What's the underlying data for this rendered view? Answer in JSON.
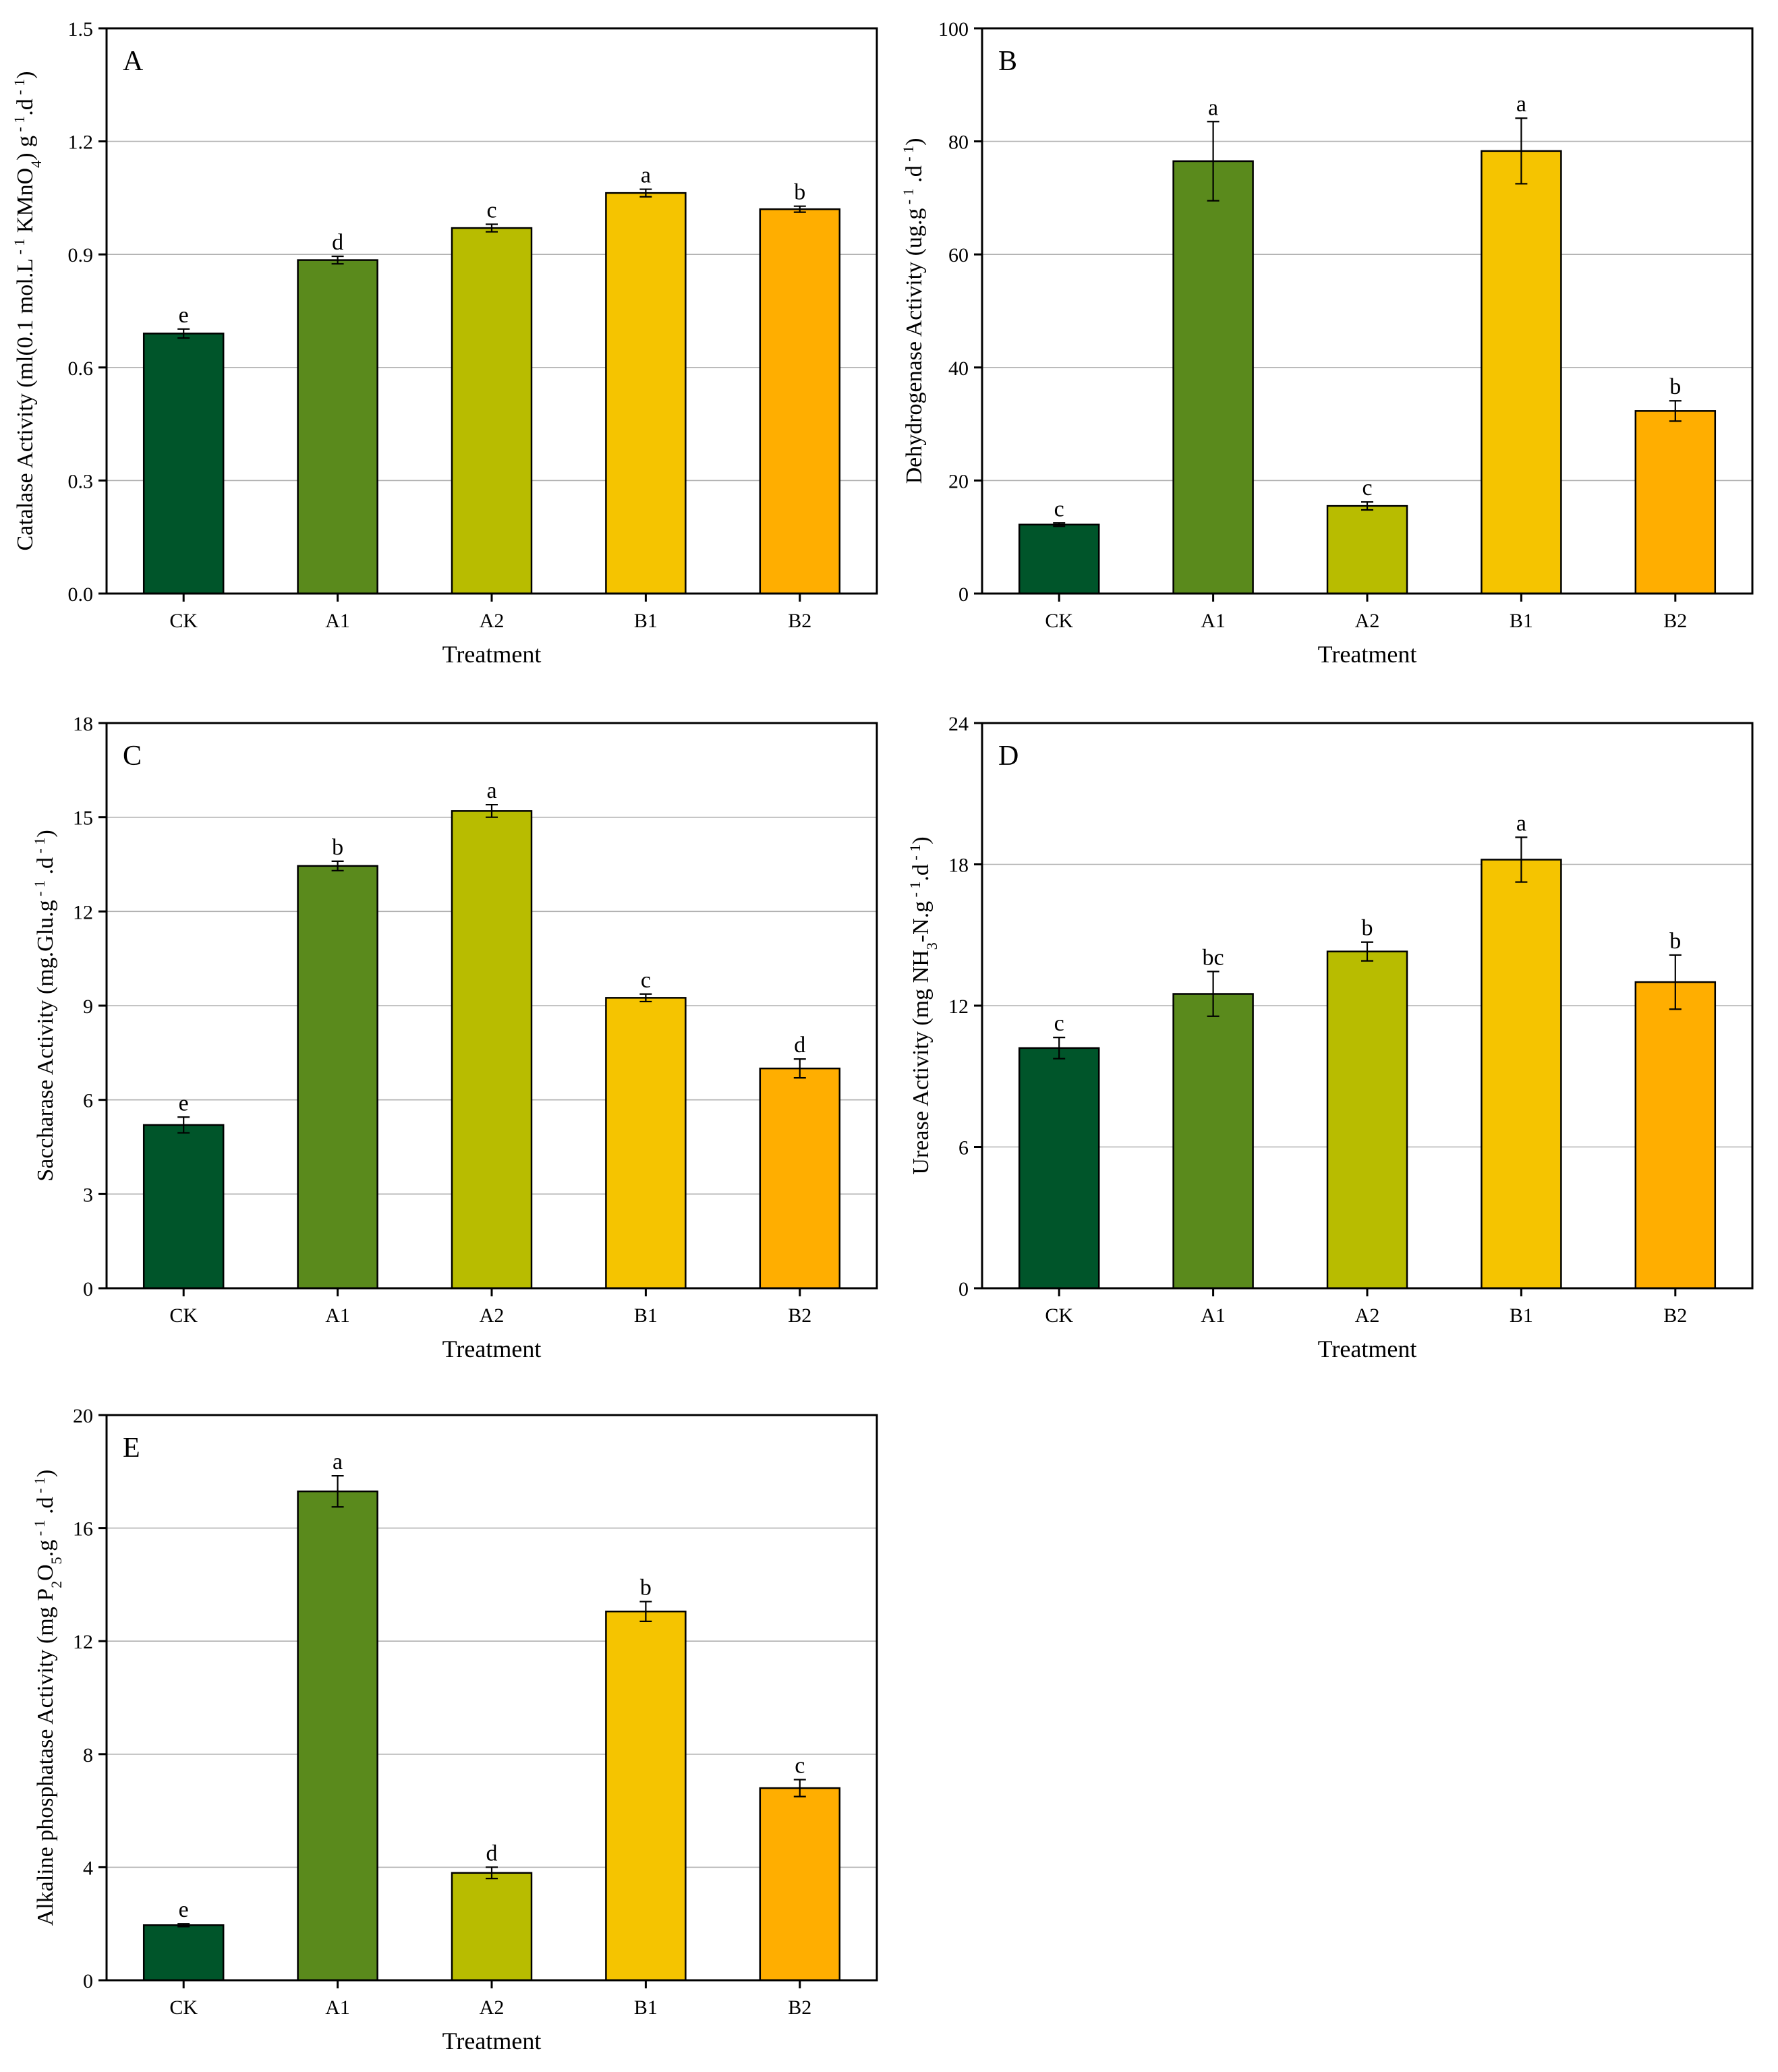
{
  "colors": {
    "CK": "#00552a",
    "A1": "#5a8a1c",
    "A2": "#b8bc00",
    "B1": "#f5c400",
    "B2": "#ffae00",
    "grid": "#b0b0b0",
    "axis": "#000000"
  },
  "chart_data": [
    {
      "type": "bar",
      "panel": "A",
      "categories": [
        "CK",
        "A1",
        "A2",
        "B1",
        "B2"
      ],
      "values": [
        0.69,
        0.885,
        0.97,
        1.063,
        1.02
      ],
      "errors": [
        0.012,
        0.01,
        0.01,
        0.01,
        0.008
      ],
      "letters": [
        "e",
        "d",
        "c",
        "a",
        "b"
      ],
      "xlabel": "Treatment",
      "ylabel": {
        "pre": "Catalase Activity (ml(0.1 mol.L",
        "sup1": " - 1",
        "mid": " KMnO",
        "sub": "4",
        "post": ") g",
        "sup2": " - 1",
        "mid2": ".d",
        "sup3": " - 1",
        "end": ")"
      },
      "ylim": [
        0,
        1.5
      ],
      "yticks": [
        "0.0",
        "0.3",
        "0.6",
        "0.9",
        "1.2",
        "1.5"
      ],
      "grid": true
    },
    {
      "type": "bar",
      "panel": "B",
      "categories": [
        "CK",
        "A1",
        "A2",
        "B1",
        "B2"
      ],
      "values": [
        12.2,
        76.5,
        15.5,
        78.3,
        32.3
      ],
      "errors": [
        0.3,
        7.0,
        0.7,
        5.8,
        1.8
      ],
      "letters": [
        "c",
        "a",
        "c",
        "a",
        "b"
      ],
      "xlabel": "Treatment",
      "ylabel": {
        "pre": "Dehydrogenase Activity (ug.g",
        "sup1": " - 1",
        "mid": " .d",
        "sup2": " - 1",
        "end": ")"
      },
      "ylim": [
        0,
        100
      ],
      "yticks": [
        "0",
        "20",
        "40",
        "60",
        "80",
        "100"
      ],
      "grid": true
    },
    {
      "type": "bar",
      "panel": "C",
      "categories": [
        "CK",
        "A1",
        "A2",
        "B1",
        "B2"
      ],
      "values": [
        5.2,
        13.45,
        15.2,
        9.25,
        7.0
      ],
      "errors": [
        0.25,
        0.15,
        0.2,
        0.12,
        0.3
      ],
      "letters": [
        "e",
        "b",
        "a",
        "c",
        "d"
      ],
      "xlabel": "Treatment",
      "ylabel": {
        "pre": "Saccharase  Activity (mg.Glu.g",
        "sup1": " - 1",
        "mid": " .d",
        "sup2": " - 1",
        "end": ")"
      },
      "ylim": [
        0,
        18
      ],
      "yticks": [
        "0",
        "3",
        "6",
        "9",
        "12",
        "15",
        "18"
      ],
      "grid": true
    },
    {
      "type": "bar",
      "panel": "D",
      "categories": [
        "CK",
        "A1",
        "A2",
        "B1",
        "B2"
      ],
      "values": [
        10.2,
        12.5,
        14.3,
        18.2,
        13.0
      ],
      "errors": [
        0.45,
        0.95,
        0.4,
        0.95,
        1.15
      ],
      "letters": [
        "c",
        "bc",
        "b",
        "a",
        "b"
      ],
      "xlabel": "Treatment",
      "ylabel": {
        "pre": "Urease  Activity (mg NH",
        "sub": "3",
        "mid": "-N.g",
        "sup1": " - 1",
        "mid2": ".d",
        "sup2": " - 1",
        "end": ")"
      },
      "ylim": [
        0,
        24
      ],
      "yticks": [
        "0",
        "6",
        "12",
        "18",
        "24"
      ],
      "grid": true
    },
    {
      "type": "bar",
      "panel": "E",
      "categories": [
        "CK",
        "A1",
        "A2",
        "B1",
        "B2"
      ],
      "values": [
        1.95,
        17.3,
        3.8,
        13.05,
        6.8
      ],
      "errors": [
        0.05,
        0.55,
        0.2,
        0.35,
        0.3
      ],
      "letters": [
        "e",
        "a",
        "d",
        "b",
        "c"
      ],
      "xlabel": "Treatment",
      "ylabel": {
        "pre": "Alkaline phosphatase  Activity (mg P",
        "sub": "2",
        "mid": "O",
        "sub2": "5",
        "mid2": ".g",
        "sup1": " - 1",
        "mid3": " .d",
        "sup2": " - 1",
        "end": ")"
      },
      "ylim": [
        0,
        20
      ],
      "yticks": [
        "0",
        "4",
        "8",
        "12",
        "16",
        "20"
      ],
      "grid": true
    }
  ]
}
